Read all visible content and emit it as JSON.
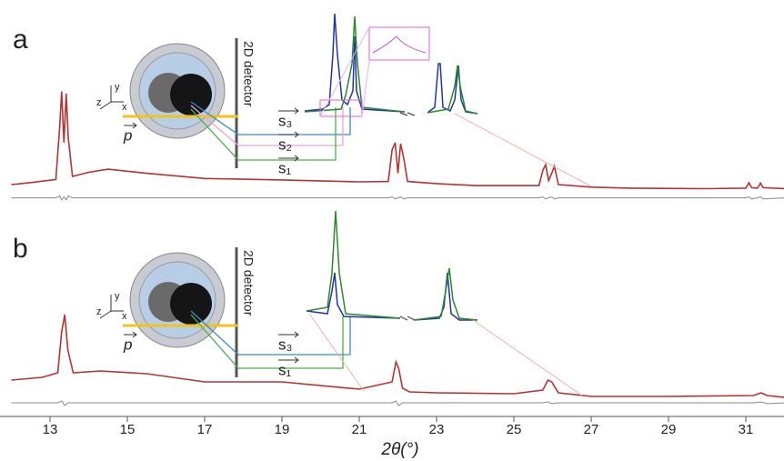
{
  "chart_data": [
    {
      "type": "line",
      "label": "a",
      "x": [
        12,
        12.5,
        13.15,
        13.25,
        13.3,
        13.36,
        13.42,
        13.47,
        13.58,
        14,
        14.5,
        15.5,
        17,
        19,
        21,
        21.75,
        21.85,
        21.93,
        22.0,
        22.07,
        22.15,
        22.25,
        23,
        24,
        25.65,
        25.75,
        25.82,
        25.9,
        25.98,
        26.05,
        26.15,
        27,
        28,
        30,
        31.0,
        31.08,
        31.15,
        31.3,
        31.38,
        31.45,
        32
      ],
      "series": [
        {
          "color": "#b83232",
          "values": [
            4,
            6,
            9,
            60,
            95,
            45,
            93,
            50,
            12,
            16,
            19,
            15,
            10,
            8.5,
            6.7,
            7,
            38,
            45,
            15,
            44,
            30,
            7,
            5,
            3,
            3,
            18,
            23.5,
            8,
            15,
            22,
            4,
            1.5,
            0.5,
            0,
            0.5,
            5.8,
            1,
            0.5,
            5.5,
            1,
            0
          ]
        },
        {
          "color": "#888888",
          "values": [
            -9,
            -9,
            -9,
            -7,
            -11,
            -8,
            -11,
            -7,
            -9,
            -9,
            -9,
            -9,
            -9,
            -9,
            -9,
            -9,
            -8,
            -10,
            -9,
            -8,
            -10,
            -9,
            -9,
            -9,
            -9,
            -8,
            -10,
            -9,
            -8,
            -10,
            -9,
            -9,
            -9,
            -9,
            -9,
            -8,
            -10,
            -9,
            -8,
            -10,
            -9
          ]
        }
      ],
      "xlim": [
        12,
        32
      ],
      "ylim": [
        -20,
        100
      ],
      "annotations": {
        "detector": "2D detector",
        "axes": [
          "x",
          "y",
          "z"
        ],
        "beam": "p",
        "vectors": [
          "s₃",
          "s₂",
          "s₁"
        ]
      }
    },
    {
      "type": "line",
      "label": "b",
      "x": [
        12,
        12.8,
        13.2,
        13.3,
        13.38,
        13.46,
        13.6,
        14.3,
        15.5,
        17,
        19,
        21,
        21.85,
        21.95,
        22.02,
        22.12,
        22.3,
        23,
        25,
        25.75,
        25.88,
        25.98,
        26.15,
        27,
        29,
        31.2,
        31.4,
        31.55,
        32
      ],
      "series": [
        {
          "color": "#b83232",
          "values": [
            17,
            20,
            25,
            70,
            89,
            50,
            25,
            27,
            24,
            15,
            15,
            7,
            15,
            37,
            30,
            8,
            4,
            3,
            2,
            6,
            17,
            15,
            3,
            -1,
            -1,
            0,
            3,
            0,
            -2
          ]
        },
        {
          "color": "#888888",
          "values": [
            -8,
            -8,
            -8,
            -6,
            -11,
            -8,
            -8,
            -8,
            -8,
            -8,
            -8,
            -8,
            -8,
            -6,
            -11,
            -8,
            -8,
            -8,
            -8,
            -8,
            -7,
            -9,
            -8,
            -8,
            -8,
            -8,
            -7,
            -9,
            -8
          ]
        }
      ],
      "xlim": [
        12,
        32
      ],
      "ylim": [
        -20,
        100
      ],
      "xticks": [
        13,
        15,
        17,
        19,
        21,
        23,
        25,
        27,
        29,
        31
      ],
      "xlabel": "2θ(°)",
      "annotations": {
        "detector": "2D detector",
        "axes": [
          "x",
          "y",
          "z"
        ],
        "beam": "p",
        "vectors": [
          "s₃",
          "s₁"
        ]
      }
    }
  ]
}
